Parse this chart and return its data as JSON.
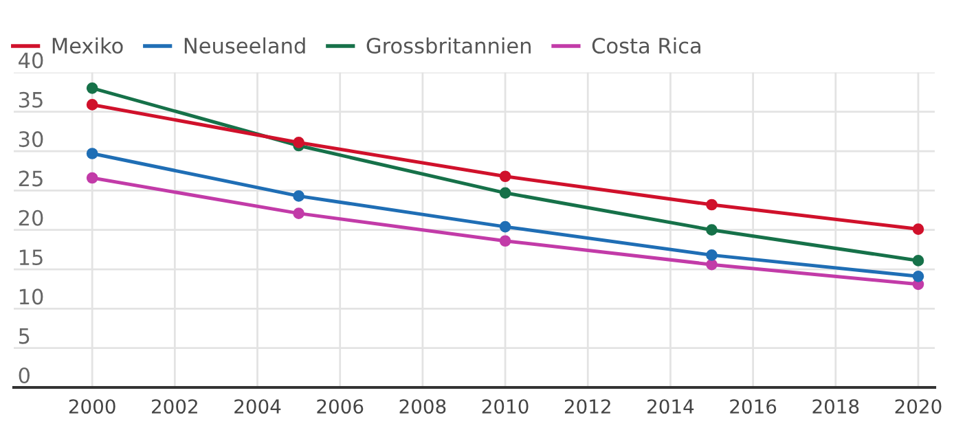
{
  "chart_data": {
    "type": "line",
    "x": [
      2000,
      2005,
      2010,
      2015,
      2020
    ],
    "series": [
      {
        "name": "Mexiko",
        "color": "#d0112b",
        "values": [
          35.9,
          31.1,
          26.8,
          23.2,
          20.1
        ]
      },
      {
        "name": "Neuseeland",
        "color": "#1f6eb5",
        "values": [
          29.7,
          24.3,
          20.4,
          16.8,
          14.1
        ]
      },
      {
        "name": "Grossbritannien",
        "color": "#167149",
        "values": [
          38.0,
          30.7,
          24.7,
          20.0,
          16.1
        ]
      },
      {
        "name": "Costa Rica",
        "color": "#c23ba8",
        "values": [
          26.6,
          22.1,
          18.6,
          15.6,
          13.1
        ]
      }
    ],
    "xlim": [
      1998.1,
      2020.4
    ],
    "xticks": [
      2000,
      2002,
      2004,
      2006,
      2008,
      2010,
      2012,
      2014,
      2016,
      2018,
      2020
    ],
    "ylim": [
      0,
      40
    ],
    "yticks": [
      0,
      5,
      10,
      15,
      20,
      25,
      30,
      35,
      40
    ],
    "grid": true,
    "legend": "top left",
    "marker": "circle",
    "line_style": "solid"
  }
}
